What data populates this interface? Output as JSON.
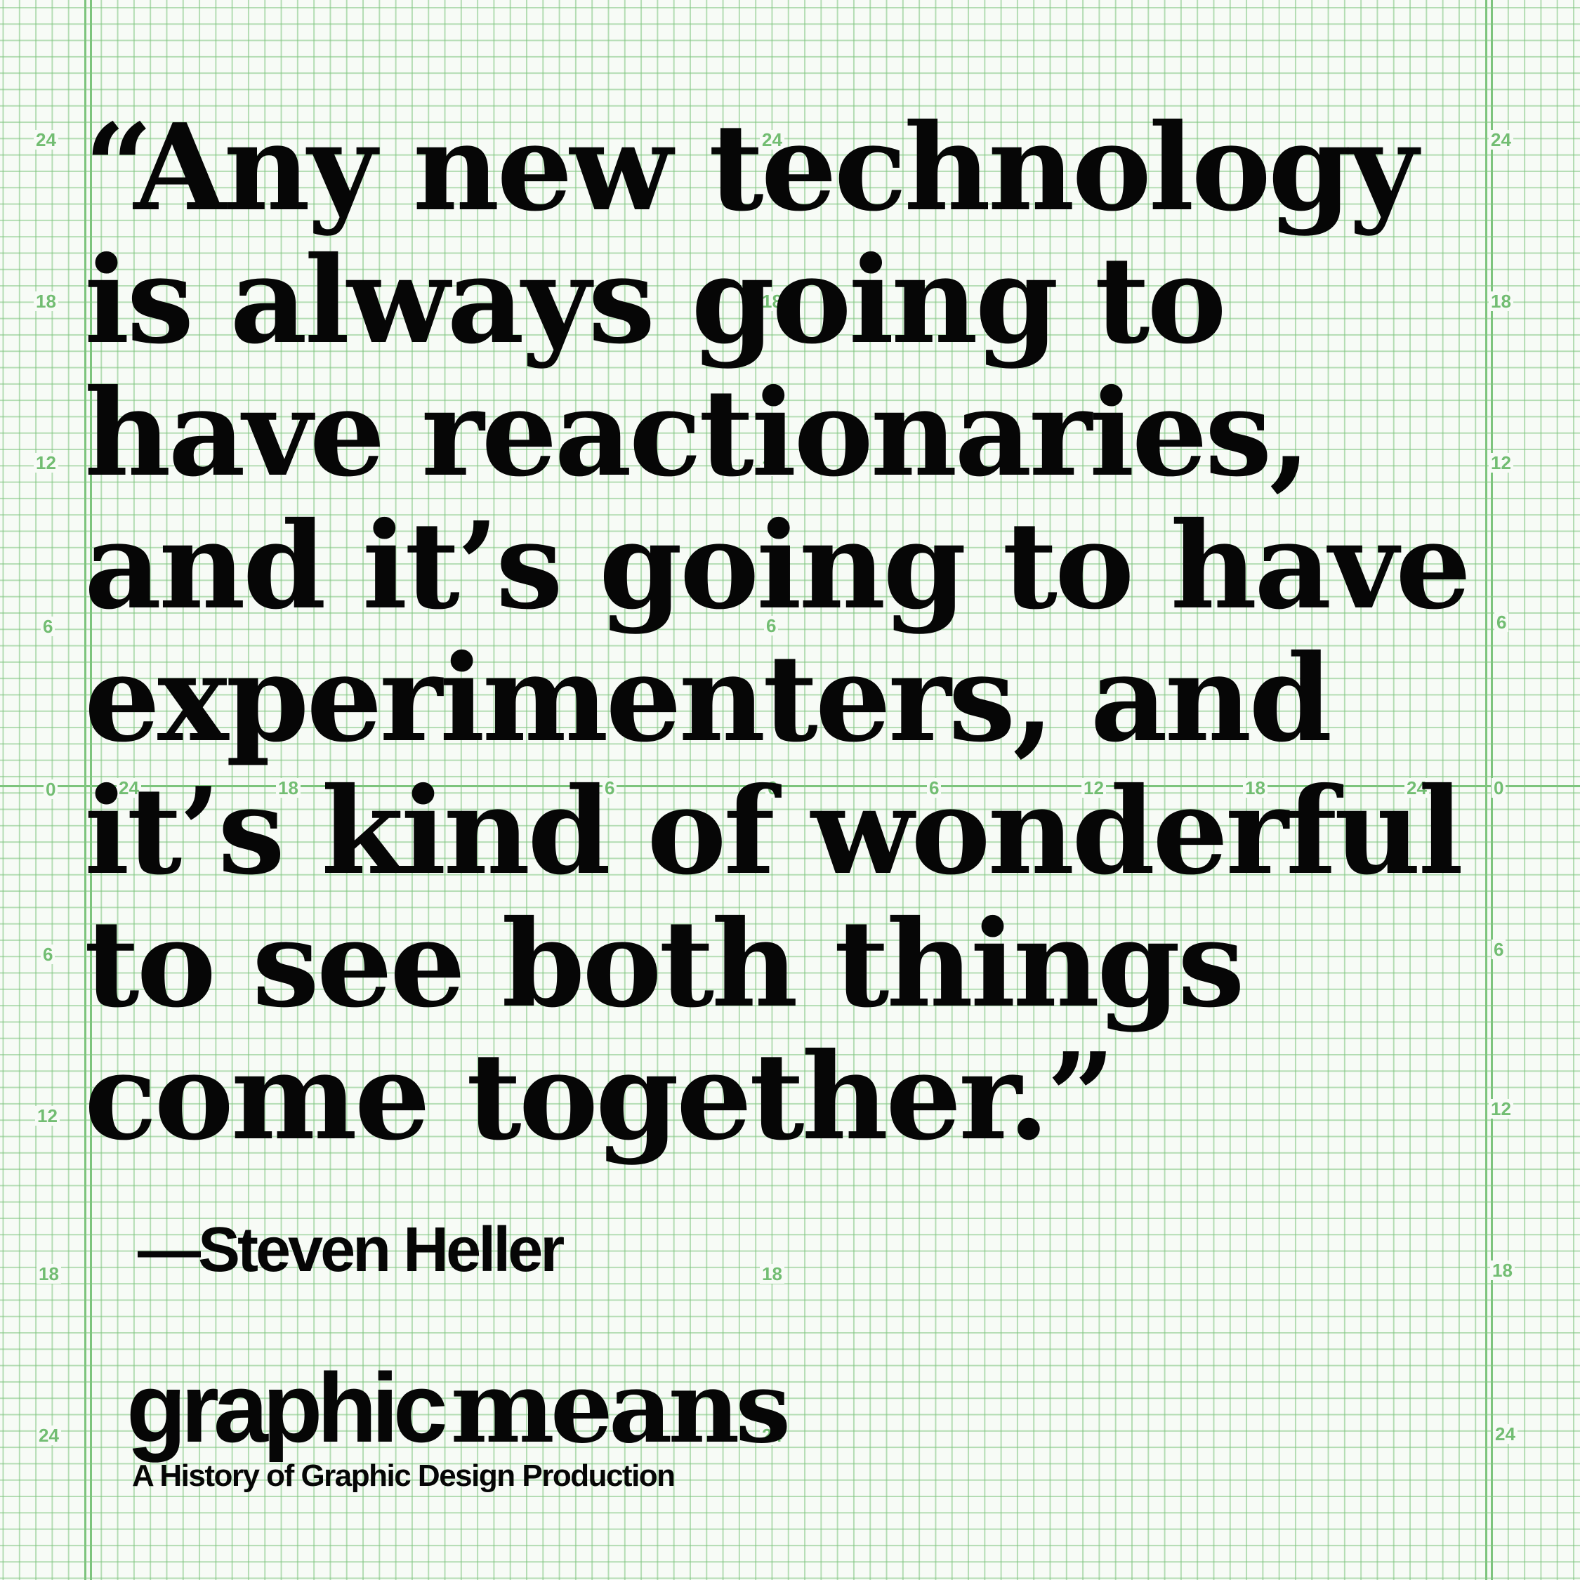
{
  "quote": {
    "text": "“Any new technology\nis always going to\nhave reactionaries,\nand it’s going to have\nexperimenters, and\nit’s kind of wonderful\nto see both things\ncome together.”",
    "attribution": "—Steven Heller"
  },
  "branding": {
    "logo_part1": "graphic",
    "logo_part2": "means",
    "tagline": "A History of Graphic Design Production"
  },
  "grid": {
    "color": "#7dc47d",
    "left_scale": [
      "24",
      "18",
      "12",
      "6",
      "0",
      "6",
      "12",
      "18",
      "24"
    ],
    "right_scale": [
      "24",
      "18",
      "12",
      "6",
      "0",
      "6",
      "12",
      "18",
      "24"
    ],
    "horizontal_scale": [
      "24",
      "18",
      "6",
      "0",
      "6",
      "12",
      "18",
      "24"
    ],
    "center_scale": [
      "24",
      "18",
      "12",
      "6",
      "18",
      "24"
    ]
  }
}
